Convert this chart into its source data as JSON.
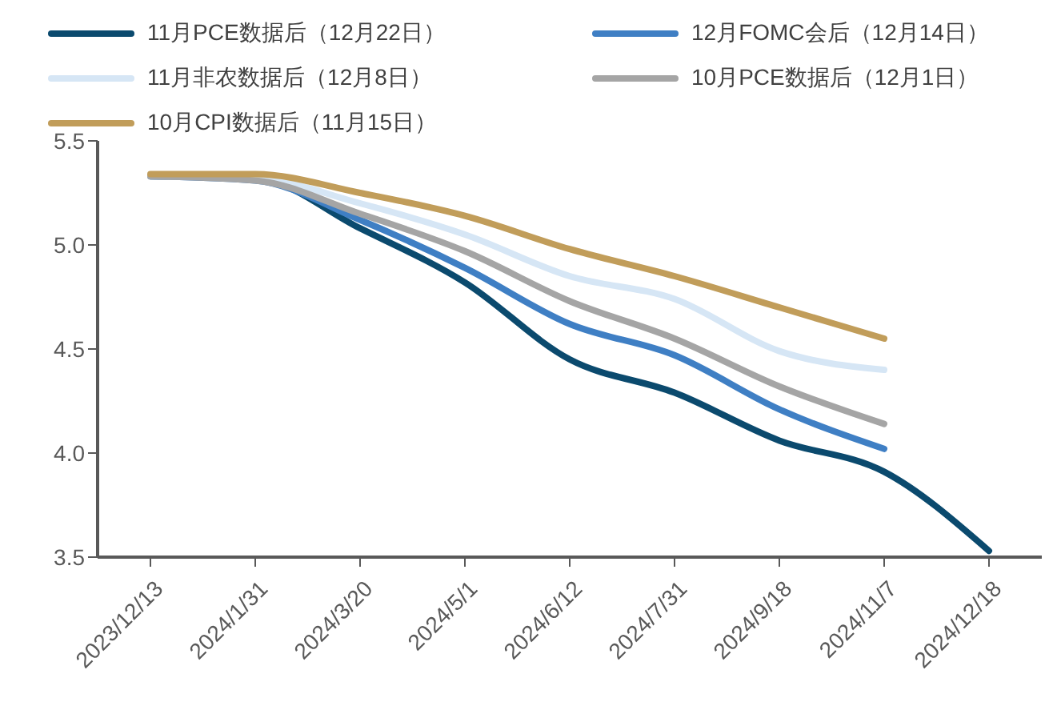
{
  "chart_data": {
    "type": "line",
    "categories": [
      "2023/12/13",
      "2024/1/31",
      "2024/3/20",
      "2024/5/1",
      "2024/6/12",
      "2024/7/31",
      "2024/9/18",
      "2024/11/7",
      "2024/12/18"
    ],
    "series": [
      {
        "name": "11月PCE数据后（12月22日）",
        "color": "#0b4a6e",
        "values": [
          5.33,
          5.32,
          5.08,
          4.82,
          4.45,
          4.29,
          4.06,
          3.91,
          3.53
        ]
      },
      {
        "name": "12月FOMC会后（12月14日）",
        "color": "#3f7fc4",
        "values": [
          5.33,
          5.31,
          5.12,
          4.89,
          4.62,
          4.47,
          4.21,
          4.02,
          null
        ]
      },
      {
        "name": "11月非农数据后（12月8日）",
        "color": "#d6e6f5",
        "values": [
          5.33,
          5.32,
          5.2,
          5.05,
          4.85,
          4.74,
          4.49,
          4.4,
          null
        ]
      },
      {
        "name": "10月PCE数据后（12月1日）",
        "color": "#a5a5a5",
        "values": [
          5.33,
          5.31,
          5.15,
          4.97,
          4.73,
          4.55,
          4.32,
          4.14,
          null
        ]
      },
      {
        "name": "10月CPI数据后（11月15日）",
        "color": "#c19d5a",
        "values": [
          5.34,
          5.34,
          5.25,
          5.14,
          4.98,
          4.85,
          4.7,
          4.55,
          null
        ]
      }
    ],
    "ylim": [
      3.5,
      5.5
    ],
    "yticks": [
      3.5,
      {
        "value": 4,
        "label": "4.0"
      },
      4.5,
      {
        "value": 5,
        "label": "5.0"
      },
      5.5
    ],
    "grid": false,
    "legend": "top",
    "marker": "none",
    "line_style": "solid"
  }
}
